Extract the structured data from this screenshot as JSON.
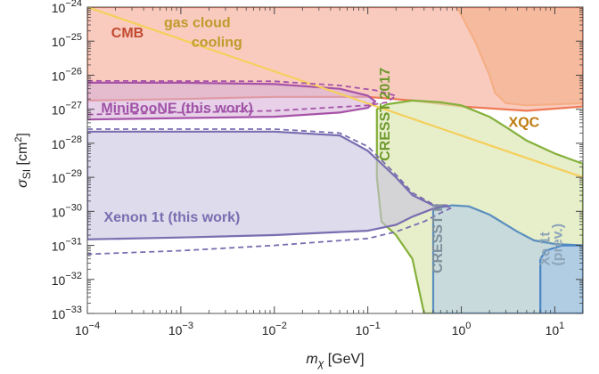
{
  "chart_data": {
    "type": "area",
    "title": "",
    "xlabel": "m_χ [GeV]",
    "xlabel_parts": {
      "symbol": "m",
      "sub": "χ",
      "unit": " [GeV]"
    },
    "ylabel": "σ_SI [cm²]",
    "ylabel_parts": {
      "symbol": "σ",
      "sub": "SI",
      "unit_pre": " [cm",
      "sup": "2",
      "unit_post": "]"
    },
    "x_scale": "log",
    "y_scale": "log",
    "xlim": [
      0.0001,
      20
    ],
    "ylim": [
      1e-33,
      1e-24
    ],
    "grid": false,
    "x_ticks": [
      {
        "value": 0.0001,
        "base": "10",
        "exp": "−4"
      },
      {
        "value": 0.001,
        "base": "10",
        "exp": "−3"
      },
      {
        "value": 0.01,
        "base": "10",
        "exp": "−2"
      },
      {
        "value": 0.1,
        "base": "10",
        "exp": "−1"
      },
      {
        "value": 1,
        "base": "10",
        "exp": "0"
      },
      {
        "value": 10,
        "base": "10",
        "exp": "1"
      }
    ],
    "y_ticks": [
      {
        "value": 1e-33,
        "base": "10",
        "exp": "−33"
      },
      {
        "value": 1e-32,
        "base": "10",
        "exp": "−32"
      },
      {
        "value": 1e-31,
        "base": "10",
        "exp": "−31"
      },
      {
        "value": 1e-30,
        "base": "10",
        "exp": "−30"
      },
      {
        "value": 1e-29,
        "base": "10",
        "exp": "−29"
      },
      {
        "value": 1e-28,
        "base": "10",
        "exp": "−28"
      },
      {
        "value": 1e-27,
        "base": "10",
        "exp": "−27"
      },
      {
        "value": 1e-26,
        "base": "10",
        "exp": "−26"
      },
      {
        "value": 1e-25,
        "base": "10",
        "exp": "−25"
      },
      {
        "value": 1e-24,
        "base": "10",
        "exp": "−24"
      }
    ],
    "regions": [
      {
        "name": "XQC",
        "label": "XQC",
        "fill": "#f2b36b",
        "stroke": "#f0a040",
        "opacity": 0.75,
        "label_pos": [
          3.2,
          3e-28
        ],
        "label_color": "#c07a10",
        "points": [
          [
            0.9,
            1e-24
          ],
          [
            1.4,
            1e-25
          ],
          [
            2.0,
            1e-26
          ],
          [
            2.3,
            3e-27
          ],
          [
            3,
            1.5e-27
          ],
          [
            5,
            1.3e-27
          ],
          [
            10,
            1.4e-27
          ],
          [
            20,
            1.5e-27
          ],
          [
            20,
            1e-24
          ]
        ]
      },
      {
        "name": "CMB",
        "label": "CMB",
        "fill": "#f7b5a4",
        "stroke": "#ee7a55",
        "opacity": 0.7,
        "label_pos": [
          0.00018,
          1.3e-25
        ],
        "label_color": "#c24a30",
        "points": [
          [
            0.0001,
            1e-24
          ],
          [
            20,
            1e-24
          ],
          [
            20,
            1.2e-27
          ],
          [
            5,
            9e-28
          ],
          [
            1,
            1.2e-27
          ],
          [
            0.3,
            1.8e-27
          ],
          [
            0.1,
            2.3e-27
          ],
          [
            0.01,
            2.3e-27
          ],
          [
            0.001,
            2e-27
          ],
          [
            0.0001,
            1.8e-27
          ]
        ]
      },
      {
        "name": "CRESST 2017",
        "label": "CRESST 2017",
        "fill": "#dbe7b4",
        "stroke": "#84b03a",
        "opacity": 0.7,
        "label_pos": [
          0.17,
          3e-29
        ],
        "label_color": "#6f9a2d",
        "label_rotate": -90,
        "points": [
          [
            0.125,
            1e-27
          ],
          [
            0.16,
            1.4e-27
          ],
          [
            0.3,
            1.8e-27
          ],
          [
            0.6,
            1.6e-27
          ],
          [
            1,
            1.3e-27
          ],
          [
            2,
            6e-28
          ],
          [
            3,
            3e-28
          ],
          [
            5,
            1.2e-28
          ],
          [
            10,
            5e-29
          ],
          [
            20,
            2.5e-29
          ],
          [
            20,
            1e-33
          ],
          [
            0.4,
            1e-33
          ],
          [
            0.3,
            4e-32
          ],
          [
            0.2,
            2e-31
          ],
          [
            0.14,
            5e-31
          ],
          [
            0.125,
            1e-29
          ]
        ]
      },
      {
        "name": "CRESST II",
        "label": "CRESST II",
        "fill": "#bdd3e0",
        "stroke": "#5b8fbf",
        "opacity": 0.75,
        "label_pos": [
          0.62,
          1.5e-32
        ],
        "label_color": "#7e8f9b",
        "label_rotate": -90,
        "points": [
          [
            0.5,
            1e-33
          ],
          [
            0.5,
            1.2e-30
          ],
          [
            0.8,
            1.5e-30
          ],
          [
            1.2,
            1.4e-30
          ],
          [
            2,
            8e-31
          ],
          [
            4,
            2.5e-31
          ],
          [
            6,
            1.4e-31
          ],
          [
            10,
            1.1e-31
          ],
          [
            20,
            1e-31
          ],
          [
            20,
            1e-33
          ]
        ]
      },
      {
        "name": "Xe 1t (prev.)",
        "label": "Xe 1t",
        "sublabel": "(prev.)",
        "fill": "#a9c8e6",
        "stroke": "#4a86c5",
        "opacity": 0.75,
        "label_pos": [
          8.8,
          2.5e-32
        ],
        "label_color": "#8ea5b8",
        "label_rotate": -90,
        "points": [
          [
            7,
            1e-33
          ],
          [
            7,
            4e-32
          ],
          [
            8,
            7e-32
          ],
          [
            12,
            1e-31
          ],
          [
            20,
            1e-31
          ],
          [
            20,
            1e-33
          ]
        ]
      },
      {
        "name": "MiniBooNE (this work)",
        "label": "MiniBooNE (this work)",
        "fill": "#d7b1d9",
        "stroke": "#a653a8",
        "opacity": 0.6,
        "label_pos": [
          0.00014,
          8e-28
        ],
        "label_color": "#a052a6",
        "points": [
          [
            0.0001,
            6e-27
          ],
          [
            0.001,
            6e-27
          ],
          [
            0.01,
            5.5e-27
          ],
          [
            0.05,
            4e-27
          ],
          [
            0.1,
            2.5e-27
          ],
          [
            0.12,
            1.7e-27
          ],
          [
            0.1,
            1.1e-27
          ],
          [
            0.05,
            8e-28
          ],
          [
            0.01,
            6e-28
          ],
          [
            0.001,
            5.5e-28
          ],
          [
            0.0001,
            5e-28
          ]
        ]
      },
      {
        "name": "Xenon 1t (this work)",
        "label": "Xenon 1t (this work)",
        "fill": "#c8c3e0",
        "stroke": "#7a6db0",
        "opacity": 0.6,
        "label_pos": [
          0.00015,
          5e-31
        ],
        "label_color": "#7a6db0",
        "points": [
          [
            0.0001,
            2.2e-28
          ],
          [
            0.01,
            2.2e-28
          ],
          [
            0.05,
            1.7e-28
          ],
          [
            0.1,
            6e-29
          ],
          [
            0.2,
            1e-29
          ],
          [
            0.3,
            3e-30
          ],
          [
            0.5,
            1.5e-30
          ],
          [
            0.7,
            1.5e-30
          ],
          [
            0.5,
            1.2e-30
          ],
          [
            0.3,
            7e-31
          ],
          [
            0.2,
            4e-31
          ],
          [
            0.1,
            2.7e-31
          ],
          [
            0.01,
            2e-31
          ],
          [
            0.001,
            1.7e-31
          ],
          [
            0.0001,
            1.5e-31
          ]
        ]
      }
    ],
    "lines": [
      {
        "name": "gas cloud cooling",
        "label_line1": "gas cloud",
        "label_line2": "cooling",
        "color": "#f5cf5c",
        "width": 2.2,
        "label_pos": [
          0.0015,
          2.6e-25
        ],
        "label_color": "#c09a2a",
        "points": [
          [
            0.0001,
            1e-24
          ],
          [
            20,
            1e-29
          ]
        ]
      },
      {
        "name": "MiniBooNE dashed",
        "color": "#a653a8",
        "width": 1.8,
        "dash": true,
        "points": [
          [
            0.0001,
            6.8e-27
          ],
          [
            0.01,
            6.6e-27
          ],
          [
            0.05,
            5e-27
          ],
          [
            0.12,
            3.6e-27
          ],
          [
            0.2,
            2.5e-27
          ],
          [
            0.16,
            1.6e-27
          ],
          [
            0.1,
            1.3e-27
          ],
          [
            0.01,
            9e-28
          ],
          [
            0.001,
            8e-28
          ],
          [
            0.0001,
            7e-28
          ]
        ]
      },
      {
        "name": "Xenon 1t dashed",
        "color": "#7a6db0",
        "width": 1.8,
        "dash": true,
        "points": [
          [
            0.0001,
            2.6e-28
          ],
          [
            0.01,
            2.6e-28
          ],
          [
            0.05,
            2e-28
          ],
          [
            0.1,
            8e-29
          ],
          [
            0.2,
            1.2e-29
          ],
          [
            0.3,
            3.5e-30
          ],
          [
            0.5,
            1.6e-30
          ],
          [
            0.8,
            1.3e-30
          ],
          [
            0.6,
            9e-31
          ],
          [
            0.4,
            5e-31
          ],
          [
            0.2,
            2.5e-31
          ],
          [
            0.1,
            1.6e-31
          ],
          [
            0.01,
            1e-31
          ],
          [
            0.001,
            7e-32
          ],
          [
            0.0001,
            5.5e-32
          ]
        ]
      }
    ]
  }
}
